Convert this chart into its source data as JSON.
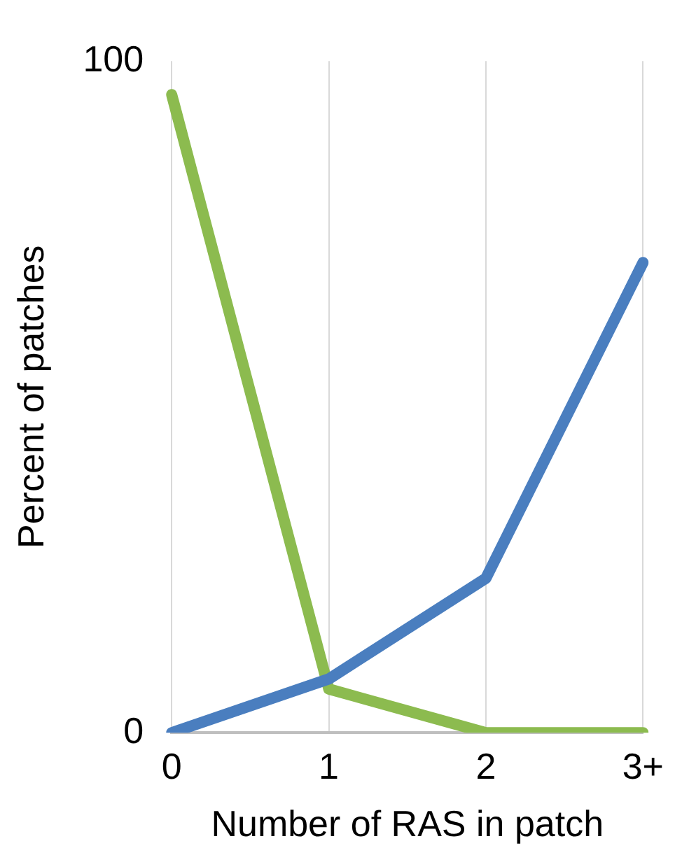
{
  "chart_data": {
    "type": "line",
    "xlabel": "Number of RAS in patch",
    "ylabel": "Percent of patches",
    "categories": [
      "0",
      "1",
      "2",
      "3+"
    ],
    "series": [
      {
        "color": "#4a7ebf",
        "values": [
          0,
          8,
          23,
          70
        ]
      },
      {
        "color": "#8cbb4f",
        "values": [
          95,
          6.5,
          0,
          0
        ]
      }
    ],
    "ylim": [
      0,
      100
    ],
    "yticks": [
      0,
      100
    ],
    "grid": "x",
    "legend": false,
    "marker": "none",
    "line_style": "solid"
  }
}
